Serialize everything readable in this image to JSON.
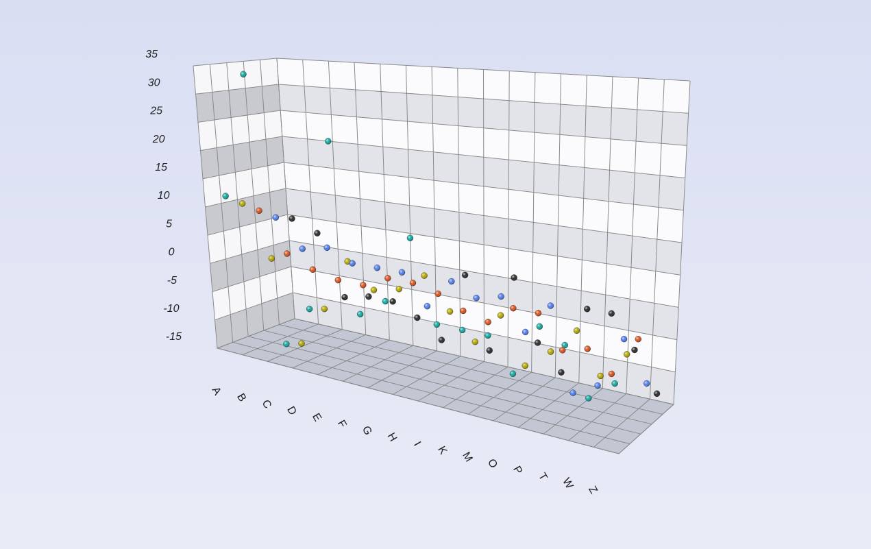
{
  "chart_data": {
    "type": "scatter3d",
    "categories": [
      "A",
      "B",
      "C",
      "D",
      "E",
      "F",
      "G",
      "H",
      "I",
      "K",
      "M",
      "O",
      "P",
      "T",
      "W",
      "Z"
    ],
    "series": [
      {
        "color": "#2b2b2b",
        "values": [
          5,
          3,
          -8,
          -7,
          -7,
          -9,
          -12,
          0,
          -12,
          1,
          -9,
          -13,
          -2,
          -2,
          -7,
          -13
        ]
      },
      {
        "color": "#4f7ff0",
        "values": [
          6,
          1,
          2,
          0,
          0,
          0,
          -5,
          0,
          -2,
          -1,
          -6,
          -1,
          -14,
          -12,
          -4,
          -10
        ]
      },
      {
        "color": "#d9531e",
        "values": [
          8,
          1,
          -1,
          -2,
          -2,
          0,
          0,
          -1,
          -3,
          -4,
          -1,
          -1,
          -6,
          -5,
          -8,
          -2
        ]
      },
      {
        "color": "#b5a800",
        "values": [
          10,
          1,
          -13,
          -6,
          3,
          -1,
          0,
          3,
          -2,
          -6,
          -1,
          -8,
          -5,
          -1,
          -7,
          -3
        ]
      },
      {
        "color": "#12a7a0",
        "values": [
          12,
          34,
          -12,
          -5,
          24,
          -4,
          -1,
          10,
          -3,
          -3,
          -3,
          -8,
          0,
          -2,
          -9,
          -6
        ]
      }
    ],
    "ylim": [
      -15,
      35
    ],
    "yticks": [
      -15,
      -10,
      -5,
      0,
      5,
      10,
      15,
      20,
      25,
      30,
      35
    ],
    "grid": true
  }
}
